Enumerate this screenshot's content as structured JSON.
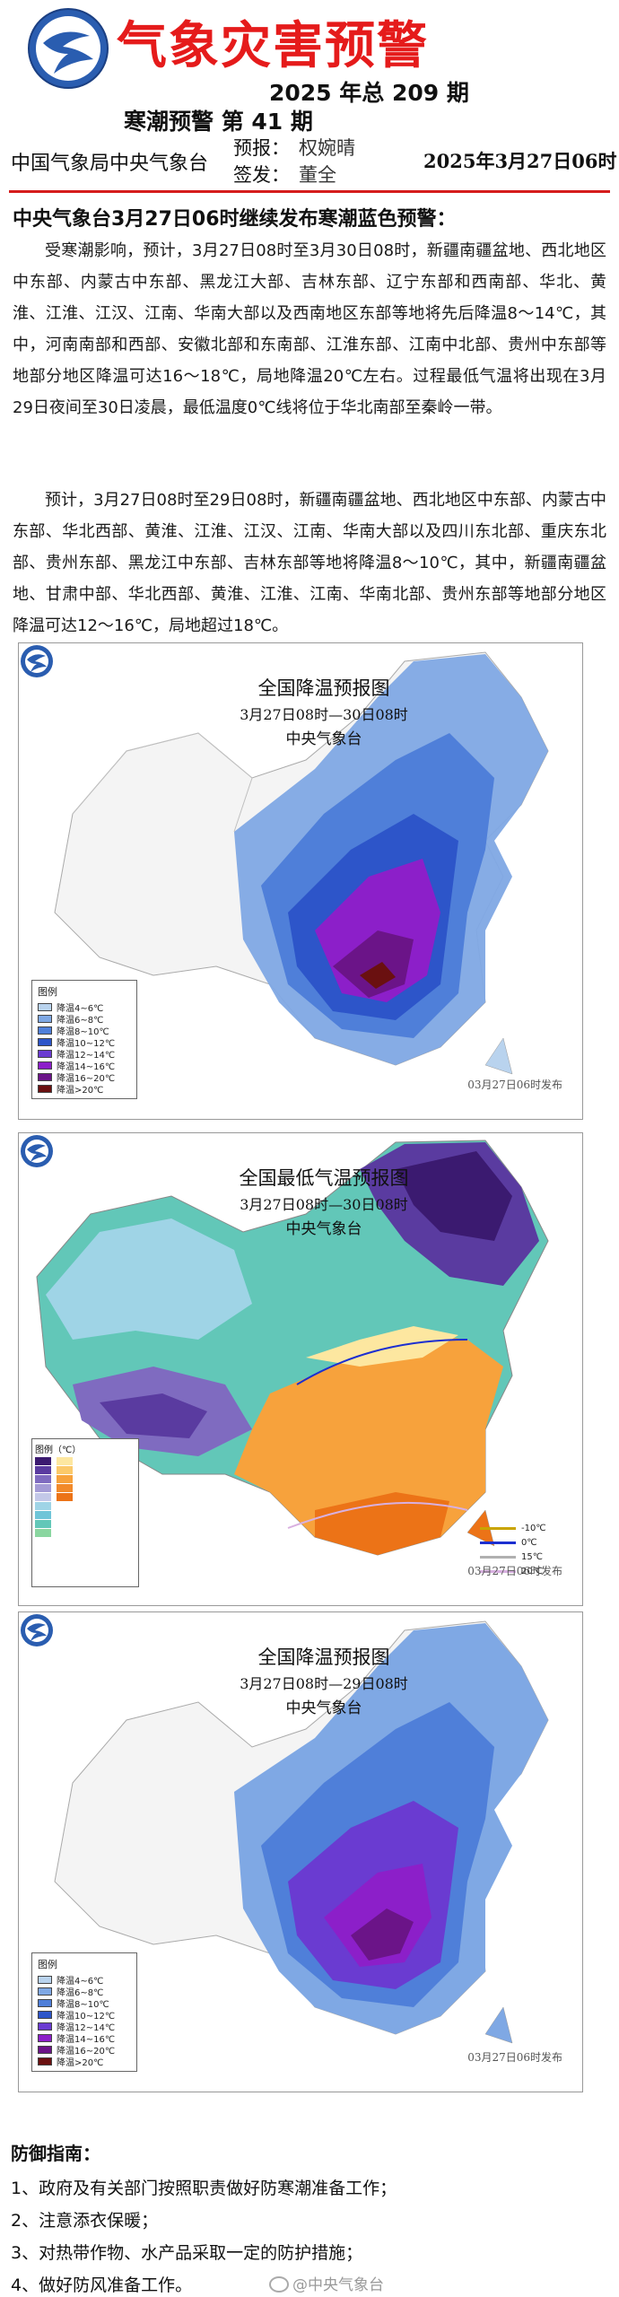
{
  "header": {
    "title": "气象灾害预警",
    "issue_total": "2025 年总 209 期",
    "issue_no": "寒潮预警 第 41 期",
    "org": "中国气象局中央气象台",
    "forecaster_label": "预报：",
    "forecaster": "权婉晴",
    "issuer_label": "签发：",
    "issuer": "董全",
    "date": "2025年3月27日06时"
  },
  "body": {
    "subtitle": "中央气象台3月27日06时继续发布寒潮蓝色预警：",
    "paragraph1": "受寒潮影响，预计，3月27日08时至3月30日08时，新疆南疆盆地、西北地区中东部、内蒙古中东部、黑龙江大部、吉林东部、辽宁东部和西南部、华北、黄淮、江淮、江汉、江南、华南大部以及西南地区东部等地将先后降温8～14℃，其中，河南南部和西部、安徽北部和东南部、江淮东部、江南中北部、贵州中东部等地部分地区降温可达16～18℃，局地降温20℃左右。过程最低气温将出现在3月29日夜间至30日凌晨，最低温度0℃线将位于华北南部至秦岭一带。",
    "paragraph2": "预计，3月27日08时至29日08时，新疆南疆盆地、西北地区中东部、内蒙古中东部、华北西部、黄淮、江淮、江汉、江南、华南大部以及四川东北部、重庆东北部、贵州东部、黑龙江中东部、吉林东部等地将降温8～10℃，其中，新疆南疆盆地、甘肃中部、华北西部、黄淮、江淮、江南、华南北部、贵州东部等地部分地区降温可达12～16℃，局地超过18℃。"
  },
  "maps": [
    {
      "title": "全国降温预报图",
      "range": "3月27日08时—30日08时",
      "org": "中央气象台",
      "stamp": "03月27日06时发布",
      "legend_title": "图例",
      "legend": [
        {
          "label": "降温4~6℃",
          "color": "#b9d3ee"
        },
        {
          "label": "降温6~8℃",
          "color": "#7fa8e4"
        },
        {
          "label": "降温8~10℃",
          "color": "#4f7fd9"
        },
        {
          "label": "降温10~12℃",
          "color": "#2d55c9"
        },
        {
          "label": "降温12~14℃",
          "color": "#6a3bd1"
        },
        {
          "label": "降温14~16℃",
          "color": "#8c1fc9"
        },
        {
          "label": "降温16~20℃",
          "color": "#6b1488"
        },
        {
          "label": "降温>20℃",
          "color": "#6a1010"
        }
      ]
    },
    {
      "title": "全国最低气温预报图",
      "range": "3月27日08时—30日08时",
      "org": "中央气象台",
      "stamp": "03月27日06时发布",
      "legend_title": "图例（℃）",
      "isolines": [
        {
          "label": "-10℃",
          "color": "#c9a400"
        },
        {
          "label": "0℃",
          "color": "#1c2fd0"
        },
        {
          "label": "15℃",
          "color": "#b0b0b0"
        },
        {
          "label": "20℃",
          "color": "#d8b0e0"
        }
      ]
    },
    {
      "title": "全国降温预报图",
      "range": "3月27日08时—29日08时",
      "org": "中央气象台",
      "stamp": "03月27日06时发布"
    }
  ],
  "colors": {
    "cold": [
      "#e6f0fb",
      "#b9d3ee",
      "#7fa8e4",
      "#4f7fd9",
      "#2d55c9",
      "#6a3bd1",
      "#8c1fc9",
      "#6b1488",
      "#6a1010"
    ],
    "mintemp_cold": [
      "#3b1a70",
      "#5a3ba0",
      "#7f6bc0",
      "#a49bd6",
      "#c3c8e8",
      "#9fd4e6",
      "#6fc5d8",
      "#62c7b8",
      "#8ad6a0"
    ],
    "mintemp_warm": [
      "#fde7a0",
      "#fbc96a",
      "#f7a23c",
      "#f28a2a",
      "#ec7317"
    ]
  },
  "guide": {
    "title": "防御指南：",
    "items": [
      "1、政府及有关部门按照职责做好防寒潮准备工作；",
      "2、注意添衣保暖；",
      "3、对热带作物、水产品采取一定的防护措施；",
      "4、做好防风准备工作。"
    ]
  },
  "watermark": "@中央气象台"
}
